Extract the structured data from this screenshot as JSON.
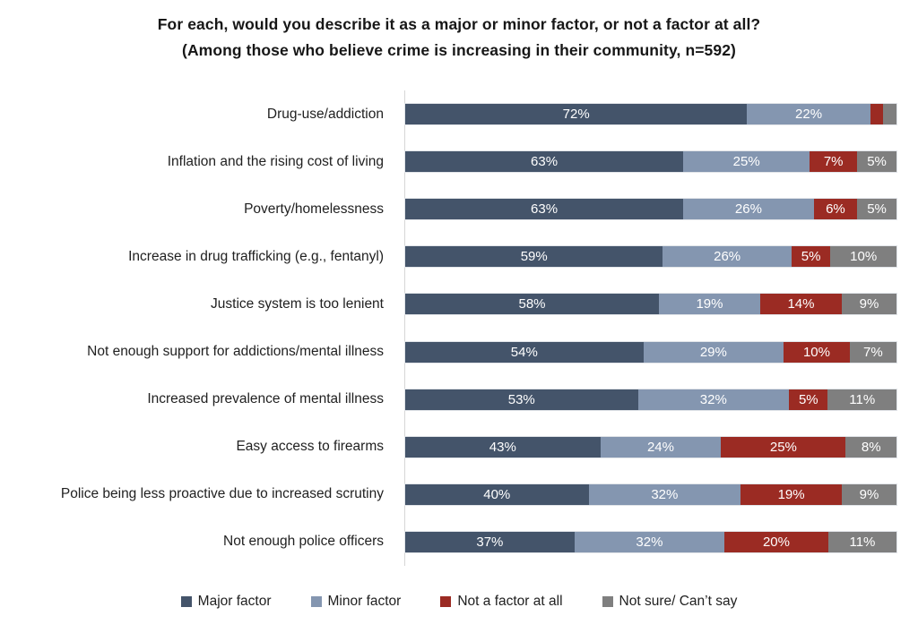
{
  "title": {
    "line1": "For each, would you describe it as a major or minor factor, or not a factor at all?",
    "line2": "(Among those who believe crime is increasing in their community, n=592)"
  },
  "colors": {
    "major_factor": "#44546A",
    "minor_factor": "#8496B0",
    "not_a_factor": "#9B2B23",
    "not_sure": "#7F7F7F",
    "axis_line": "#D6D6D6",
    "data_label_text": "#FFFFFF"
  },
  "chart_data": {
    "type": "bar",
    "orientation": "horizontal",
    "stacked": true,
    "unit": "%",
    "x_range": [
      0,
      100
    ],
    "grid": false,
    "legend_position": "bottom",
    "title": "For each, would you describe it as a major or minor factor, or not a factor at all? (Among those who believe crime is increasing in their community, n=592)",
    "categories": [
      "Drug-use/addiction",
      "Inflation and the rising cost of living",
      "Poverty/homelessness",
      "Increase in drug trafficking (e.g., fentanyl)",
      "Justice system is too lenient",
      "Not enough support for addictions/mental illness",
      "Increased prevalence of mental illness",
      "Easy access to firearms",
      "Police being less proactive due to increased scrutiny",
      "Not enough police officers"
    ],
    "series": [
      {
        "name": "Major factor",
        "color": "#44546A",
        "values": [
          72,
          63,
          63,
          59,
          58,
          54,
          53,
          43,
          40,
          37
        ],
        "labels": [
          "72%",
          "63%",
          "63%",
          "59%",
          "58%",
          "54%",
          "53%",
          "43%",
          "40%",
          "37%"
        ]
      },
      {
        "name": "Minor factor",
        "color": "#8496B0",
        "values": [
          22,
          25,
          26,
          26,
          19,
          29,
          32,
          24,
          32,
          32
        ],
        "labels": [
          "22%",
          "25%",
          "26%",
          "26%",
          "19%",
          "29%",
          "32%",
          "24%",
          "32%",
          "32%"
        ]
      },
      {
        "name": "Not a factor at all",
        "color": "#9B2B23",
        "values": [
          3,
          7,
          6,
          5,
          14,
          10,
          5,
          25,
          19,
          20
        ],
        "labels": [
          "",
          "7%",
          "6%",
          "5%",
          "14%",
          "10%",
          "5%",
          "25%",
          "19%",
          "20%"
        ]
      },
      {
        "name": "Not sure/ Can’t say",
        "color": "#7F7F7F",
        "values": [
          3,
          5,
          5,
          10,
          9,
          7,
          11,
          8,
          9,
          11
        ],
        "labels": [
          "",
          "5%",
          "5%",
          "10%",
          "9%",
          "7%",
          "11%",
          "8%",
          "9%",
          "11%"
        ]
      }
    ]
  }
}
